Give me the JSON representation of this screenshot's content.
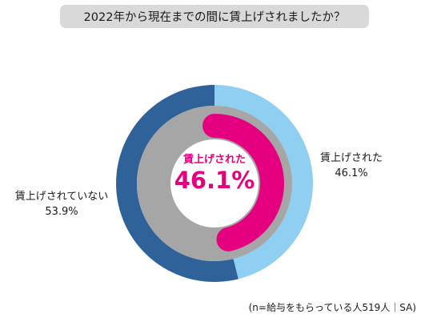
{
  "chart_data": {
    "type": "pie",
    "title": "2022年から現在までの間に賃上げされましたか？",
    "outer_ring": {
      "slices": [
        {
          "label": "賃上げされた",
          "value": 46.1,
          "value_label": "46.1%",
          "color": "#8ecff2"
        },
        {
          "label": "賃上げされていない",
          "value": 53.9,
          "value_label": "53.9%",
          "color": "#2e6299"
        }
      ]
    },
    "inner_ring": {
      "slices": [
        {
          "value": 46.1,
          "color": "#e5007f"
        },
        {
          "value": 53.9,
          "color": "#a6a6a6"
        }
      ]
    },
    "center": {
      "label": "賃上げされた",
      "value_label": "46.1%"
    },
    "note": "(n=給与をもらっている人519人｜SA)"
  }
}
